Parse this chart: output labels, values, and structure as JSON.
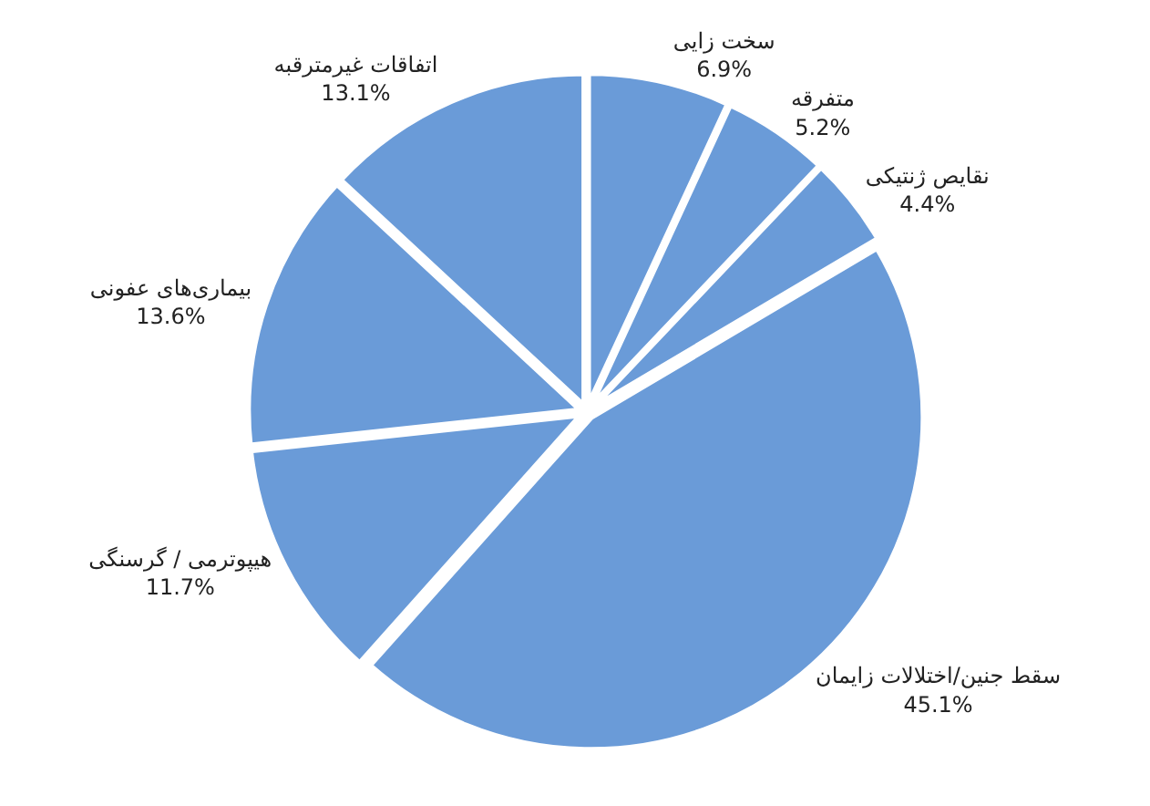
{
  "chart_data": {
    "type": "pie",
    "categories": [
      "سخت زایی",
      "متفرقه",
      "نقایص ژنتیکی",
      "سقط جنین/اختلالات زایمان",
      "هیپوترمی / گرسنگی",
      "بیماری‌های عفونی",
      "اتفاقات غیرمترقبه"
    ],
    "values": [
      6.9,
      5.2,
      4.4,
      45.1,
      11.7,
      13.6,
      13.1
    ],
    "value_labels": [
      "6.9%",
      "5.2%",
      "4.4%",
      "45.1%",
      "11.7%",
      "13.6%",
      "13.1%"
    ],
    "colors": [
      "#6a9bd8",
      "#6a9bd8",
      "#6a9bd8",
      "#6a9bd8",
      "#6a9bd8",
      "#6a9bd8",
      "#6a9bd8"
    ],
    "legend": false
  }
}
